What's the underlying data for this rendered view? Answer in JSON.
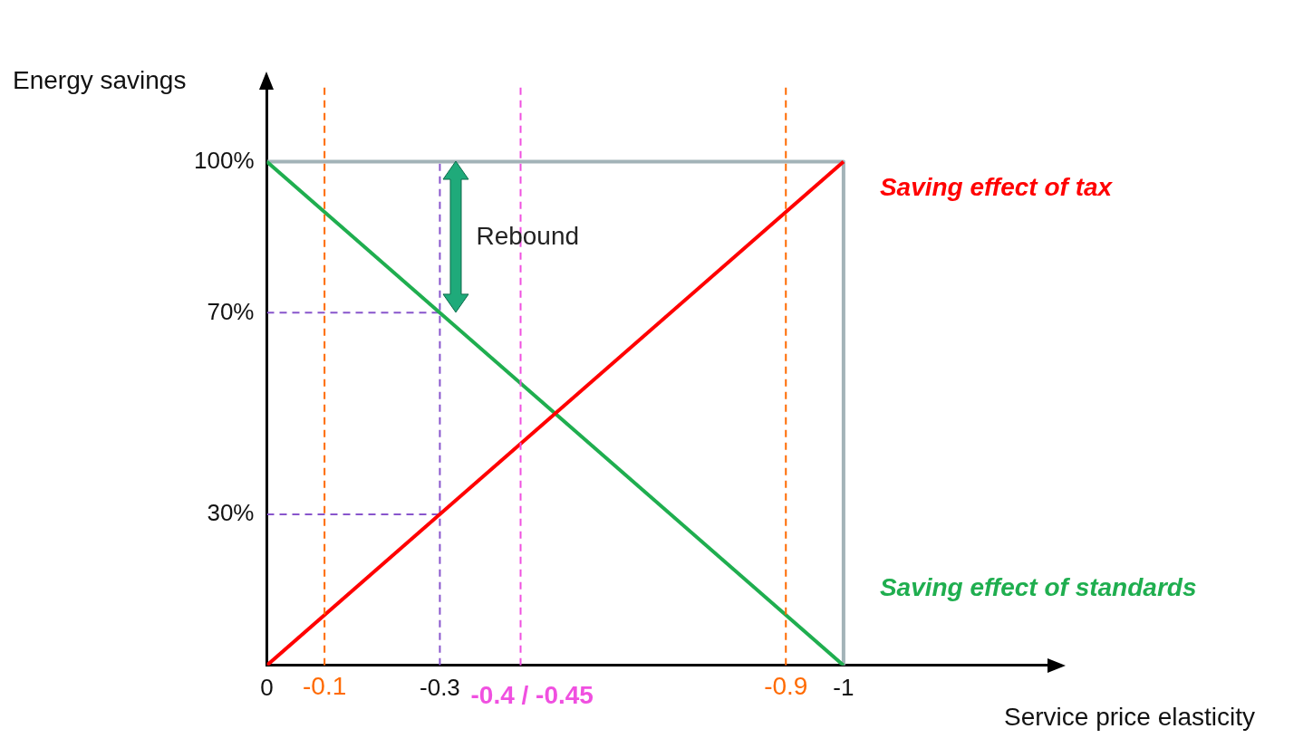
{
  "chart_data": {
    "type": "line",
    "ylabel": "Energy savings",
    "xlabel": "Service price elasticity",
    "xlim": [
      0,
      -1.36
    ],
    "ylim": [
      0,
      115
    ],
    "xticks": [
      0,
      -0.3,
      -1
    ],
    "yticks": [
      {
        "value": 30,
        "label": "30%"
      },
      {
        "value": 70,
        "label": "70%"
      },
      {
        "value": 100,
        "label": "100%"
      }
    ],
    "marker": "none",
    "series": [
      {
        "name": "Saving effect of tax",
        "color": "#ff0000",
        "x": [
          0,
          -1
        ],
        "values": [
          0,
          100
        ]
      },
      {
        "name": "Saving effect of standards",
        "color": "#1fae4f",
        "x": [
          0,
          -1
        ],
        "values": [
          100,
          0
        ]
      },
      {
        "color": "#a3b3b8",
        "x": [
          0,
          -1,
          -1
        ],
        "values": [
          100,
          100,
          0
        ]
      },
      {
        "color": "#8855cc",
        "line_style": "dashed",
        "x": [
          -0.3,
          -0.3
        ],
        "values": [
          0,
          100
        ]
      },
      {
        "color": "#8855cc",
        "line_style": "dashed",
        "x": [
          0,
          -0.3
        ],
        "values": [
          70,
          70
        ]
      },
      {
        "color": "#8855cc",
        "line_style": "dashed",
        "x": [
          0,
          -0.3
        ],
        "values": [
          30,
          30
        ]
      }
    ],
    "ref_lines": [
      {
        "axis": "x",
        "value": -0.1,
        "label": "-0.1",
        "color": "#ff6a00",
        "line_style": "dashed"
      },
      {
        "axis": "x",
        "value": -0.9,
        "label": "-0.9",
        "color": "#ff6a00",
        "line_style": "dashed"
      },
      {
        "axis": "x",
        "value": -0.44,
        "label": "-0.4 / -0.45",
        "color": "#f050e0",
        "line_style": "dashed"
      }
    ],
    "annotations": [
      {
        "text": "Rebound",
        "x": -0.3,
        "y": 85
      }
    ]
  }
}
